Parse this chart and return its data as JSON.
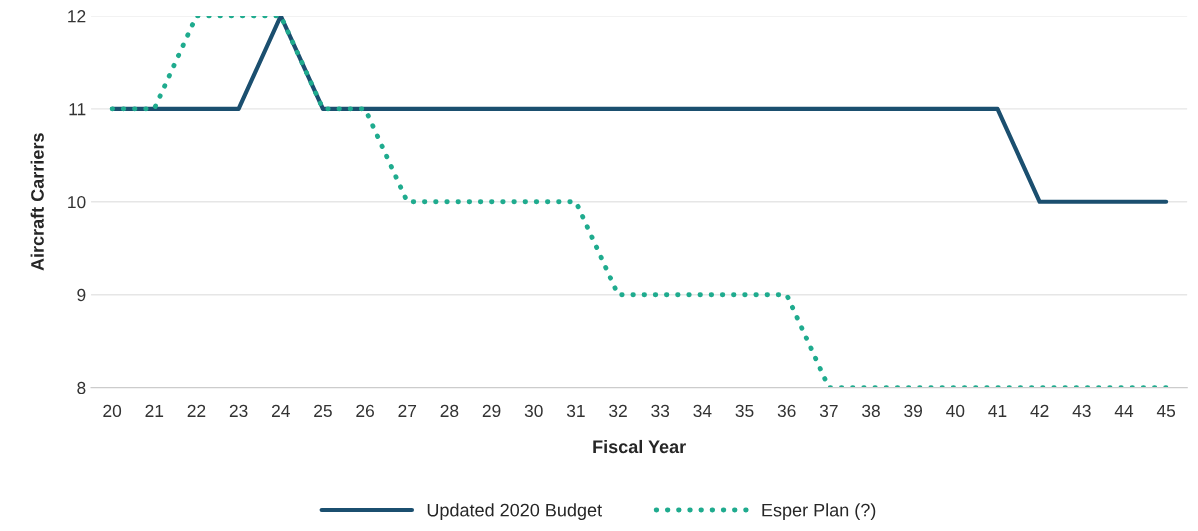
{
  "chart_data": {
    "type": "line",
    "xlabel": "Fiscal Year",
    "ylabel": "Aircraft Carriers",
    "categories": [
      "20",
      "21",
      "22",
      "23",
      "24",
      "25",
      "26",
      "27",
      "28",
      "29",
      "30",
      "31",
      "32",
      "33",
      "34",
      "35",
      "36",
      "37",
      "38",
      "39",
      "40",
      "41",
      "42",
      "43",
      "44",
      "45"
    ],
    "series": [
      {
        "name": "Updated 2020 Budget",
        "color": "#1b4f6f",
        "line_style": "solid",
        "values": [
          11,
          11,
          11,
          11,
          12,
          11,
          11,
          11,
          11,
          11,
          11,
          11,
          11,
          11,
          11,
          11,
          11,
          11,
          11,
          11,
          11,
          11,
          10,
          10,
          10,
          10
        ]
      },
      {
        "name": "Esper Plan (?)",
        "color": "#1fab8e",
        "line_style": "dotted",
        "values": [
          11,
          11,
          12,
          12,
          12,
          11,
          11,
          10,
          10,
          10,
          10,
          10,
          9,
          9,
          9,
          9,
          9,
          8,
          8,
          8,
          8,
          8,
          8,
          8,
          8,
          8
        ]
      }
    ],
    "ylim": [
      8,
      12
    ],
    "yticks": [
      8,
      9,
      10,
      11,
      12
    ],
    "grid": "y",
    "legend": "bottom",
    "marker": "none"
  }
}
